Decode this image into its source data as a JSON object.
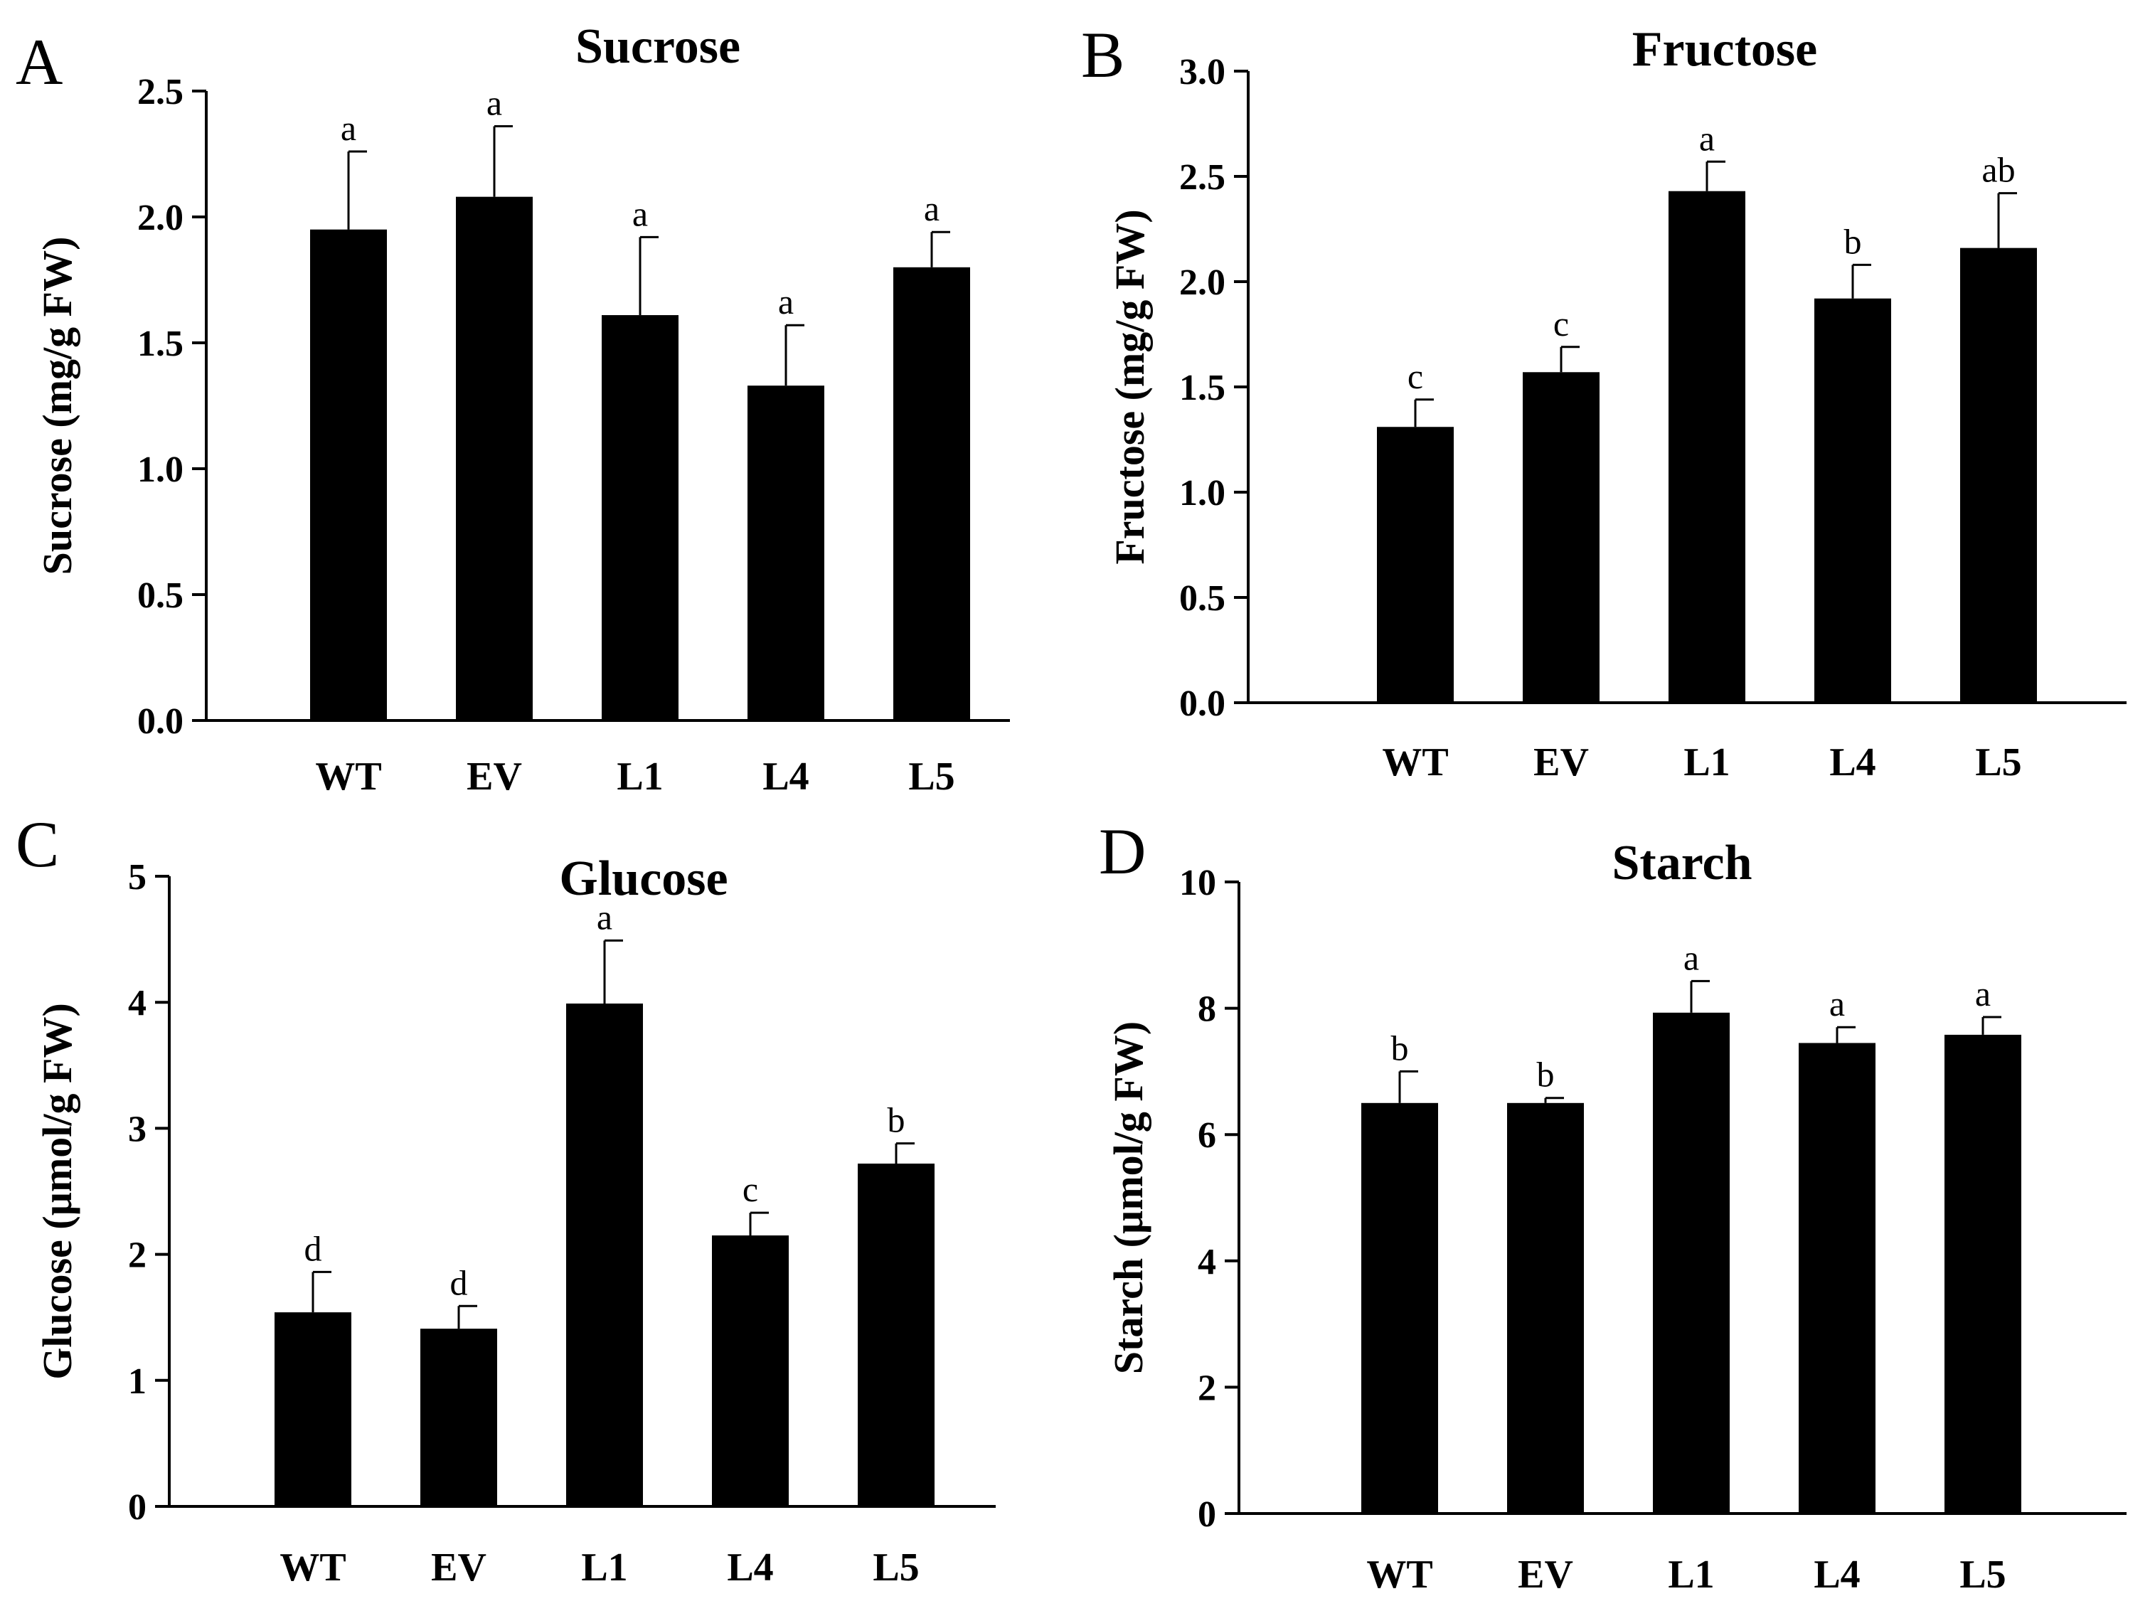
{
  "figure": {
    "panels": [
      "A",
      "B",
      "C",
      "D"
    ]
  },
  "chart_data": [
    {
      "type": "bar",
      "panel": "A",
      "title": "Sucrose",
      "xlabel": "",
      "ylabel": "Sucrose (mg/g FW)",
      "categories": [
        "WT",
        "EV",
        "L1",
        "L4",
        "L5"
      ],
      "values": [
        1.95,
        2.08,
        1.61,
        1.33,
        1.8
      ],
      "errors": [
        0.31,
        0.28,
        0.31,
        0.24,
        0.14
      ],
      "significance": [
        "a",
        "a",
        "a",
        "a",
        "a"
      ],
      "ylim": [
        0,
        2.5
      ],
      "yticks": [
        0.0,
        0.5,
        1.0,
        1.5,
        2.0,
        2.5
      ],
      "ytick_labels": [
        "0.0",
        "0.5",
        "1.0",
        "1.5",
        "2.0",
        "2.5"
      ],
      "bar_color": "#000000"
    },
    {
      "type": "bar",
      "panel": "B",
      "title": "Fructose",
      "xlabel": "",
      "ylabel": "Fructose (mg/g FW)",
      "categories": [
        "WT",
        "EV",
        "L1",
        "L4",
        "L5"
      ],
      "values": [
        1.31,
        1.57,
        2.43,
        1.92,
        2.16
      ],
      "errors": [
        0.13,
        0.12,
        0.14,
        0.16,
        0.26
      ],
      "significance": [
        "c",
        "c",
        "a",
        "b",
        "ab"
      ],
      "ylim": [
        0,
        3.0
      ],
      "yticks": [
        0.0,
        0.5,
        1.0,
        1.5,
        2.0,
        2.5,
        3.0
      ],
      "ytick_labels": [
        "0.0",
        "0.5",
        "1.0",
        "1.5",
        "2.0",
        "2.5",
        "3.0"
      ],
      "bar_color": "#000000"
    },
    {
      "type": "bar",
      "panel": "C",
      "title": "Glucose",
      "xlabel": "",
      "ylabel": "Glucose (µmol/g FW)",
      "categories": [
        "WT",
        "EV",
        "L1",
        "L4",
        "L5"
      ],
      "values": [
        1.54,
        1.41,
        3.99,
        2.15,
        2.72
      ],
      "errors": [
        0.32,
        0.18,
        0.5,
        0.18,
        0.16
      ],
      "significance": [
        "d",
        "d",
        "a",
        "c",
        "b"
      ],
      "ylim": [
        0,
        5
      ],
      "yticks": [
        0,
        1,
        2,
        3,
        4,
        5
      ],
      "ytick_labels": [
        "0",
        "1",
        "2",
        "3",
        "4",
        "5"
      ],
      "bar_color": "#000000"
    },
    {
      "type": "bar",
      "panel": "D",
      "title": "Starch",
      "xlabel": "",
      "ylabel": "Starch (µmol/g FW)",
      "categories": [
        "WT",
        "EV",
        "L1",
        "L4",
        "L5"
      ],
      "values": [
        6.5,
        6.5,
        7.93,
        7.45,
        7.58
      ],
      "errors": [
        0.5,
        0.08,
        0.5,
        0.25,
        0.28
      ],
      "significance": [
        "b",
        "b",
        "a",
        "a",
        "a"
      ],
      "ylim": [
        0,
        10
      ],
      "yticks": [
        0,
        2,
        4,
        6,
        8,
        10
      ],
      "ytick_labels": [
        "0",
        "2",
        "4",
        "6",
        "8",
        "10"
      ],
      "bar_color": "#000000"
    }
  ]
}
